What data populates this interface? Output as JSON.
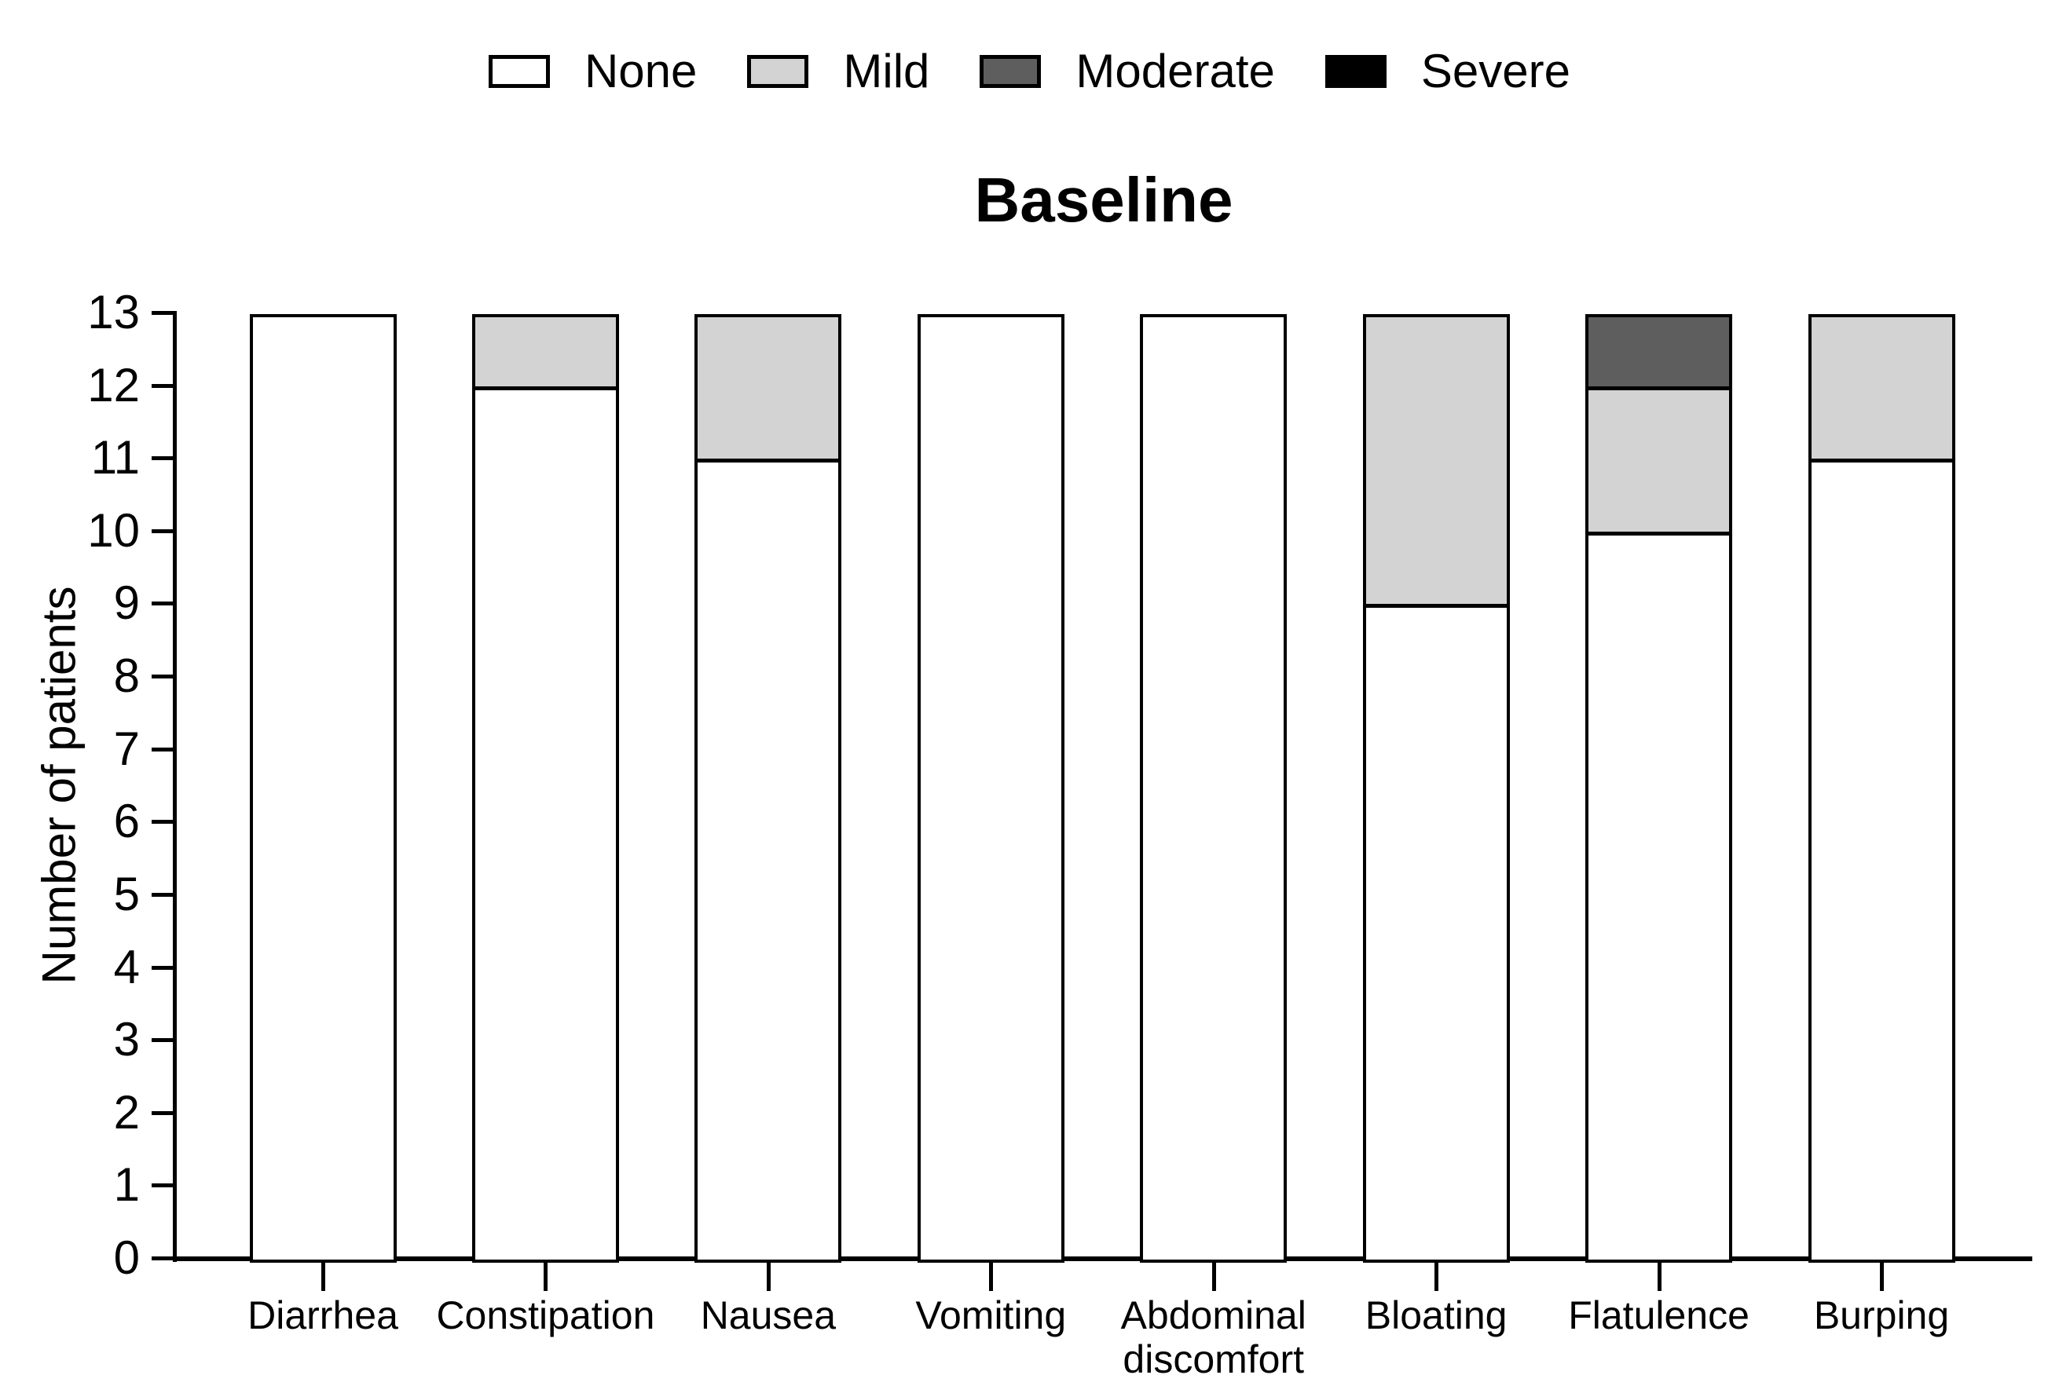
{
  "figure": {
    "background": "#ffffff",
    "axis_color": "#000000",
    "text_color": "#000000"
  },
  "chart_data": {
    "type": "bar",
    "stacked": true,
    "title": "Baseline",
    "xlabel": "",
    "ylabel": "Number of patients",
    "ylim": [
      0,
      13
    ],
    "ytick_step": 1,
    "yticks": [
      0,
      1,
      2,
      3,
      4,
      5,
      6,
      7,
      8,
      9,
      10,
      11,
      12,
      13
    ],
    "grid": false,
    "legend": {
      "position": "top",
      "entries": [
        "None",
        "Mild",
        "Moderate",
        "Severe"
      ]
    },
    "categories": [
      "Diarrhea",
      "Constipation",
      "Nausea",
      "Vomiting",
      "Abdominal discomfort",
      "Bloating",
      "Flatulence",
      "Burping"
    ],
    "series": [
      {
        "name": "None",
        "color": "#ffffff",
        "values": [
          13,
          12,
          11,
          13,
          13,
          9,
          10,
          11
        ]
      },
      {
        "name": "Mild",
        "color": "#d3d3d3",
        "values": [
          0,
          1,
          2,
          0,
          0,
          4,
          2,
          2
        ]
      },
      {
        "name": "Moderate",
        "color": "#5e5e5e",
        "values": [
          0,
          0,
          0,
          0,
          0,
          0,
          1,
          0
        ]
      },
      {
        "name": "Severe",
        "color": "#000000",
        "values": [
          0,
          0,
          0,
          0,
          0,
          0,
          0,
          0
        ]
      }
    ],
    "totals": [
      13,
      13,
      13,
      13,
      13,
      13,
      13,
      13
    ]
  }
}
